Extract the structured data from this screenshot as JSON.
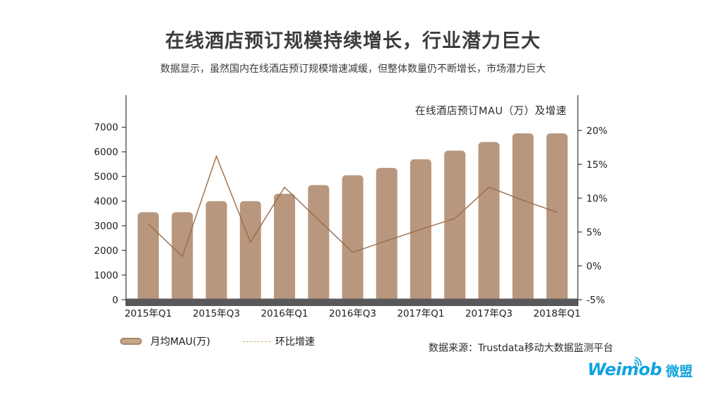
{
  "page": {
    "title": "在线酒店预订规模持续增长，行业潜力巨大",
    "subtitle": "数据显示，虽然国内在线酒店预订规模增速减缓，但整体数量仍不断增长，市场潜力巨大",
    "source": "数据来源：Trustdata移动大数据监测平台"
  },
  "legend": {
    "bar_label": "月均MAU(万)",
    "line_label": "环比增速"
  },
  "logo": {
    "wordmark": "Weimob",
    "cjk": "微盟",
    "mark": "wifi-arcs-icon",
    "color": "#11a3de"
  },
  "colors": {
    "bar": "#b8977e",
    "line": "#9a6c48",
    "axis": "#3a3a3a",
    "baseline_band": "#59595b"
  },
  "chart_data": {
    "type": "bar",
    "subtype": "bar+line combo, dual axis",
    "title": "在线酒店预订MAU（万）及增速",
    "categories": [
      "2015年Q1",
      "2015年Q2",
      "2015年Q3",
      "2015年Q4",
      "2016年Q1",
      "2016年Q2",
      "2016年Q3",
      "2016年Q4",
      "2017年Q1",
      "2017年Q2",
      "2017年Q3",
      "2017年Q4",
      "2018年Q1"
    ],
    "x_tick_labels": [
      "2015年Q1",
      "2015年Q3",
      "2016年Q1",
      "2016年Q3",
      "2017年Q1",
      "2017年Q3",
      "2018年Q1"
    ],
    "series": [
      {
        "name": "月均MAU(万)",
        "type": "bar",
        "axis": "left",
        "values": [
          3550,
          3550,
          4000,
          4000,
          4300,
          4650,
          5050,
          5350,
          5700,
          6050,
          6400,
          6750,
          6750
        ]
      },
      {
        "name": "环比增速",
        "type": "line",
        "axis": "right",
        "unit": "%",
        "values": [
          6.2,
          1.4,
          16.2,
          3.5,
          11.6,
          6.8,
          2.0,
          3.7,
          5.4,
          7.0,
          11.6,
          9.7,
          7.9
        ]
      }
    ],
    "y_left": {
      "tick_labels": [
        "0",
        "1000",
        "2000",
        "3000",
        "4000",
        "5000",
        "6000",
        "7000"
      ],
      "min": 0,
      "max_labeled": 7000
    },
    "y_right": {
      "tick_labels": [
        "-5%",
        "0%",
        "5%",
        "10%",
        "15%",
        "20%"
      ],
      "min": -5,
      "max_labeled": 20
    },
    "grid": false,
    "legend_position": "bottom-left"
  }
}
